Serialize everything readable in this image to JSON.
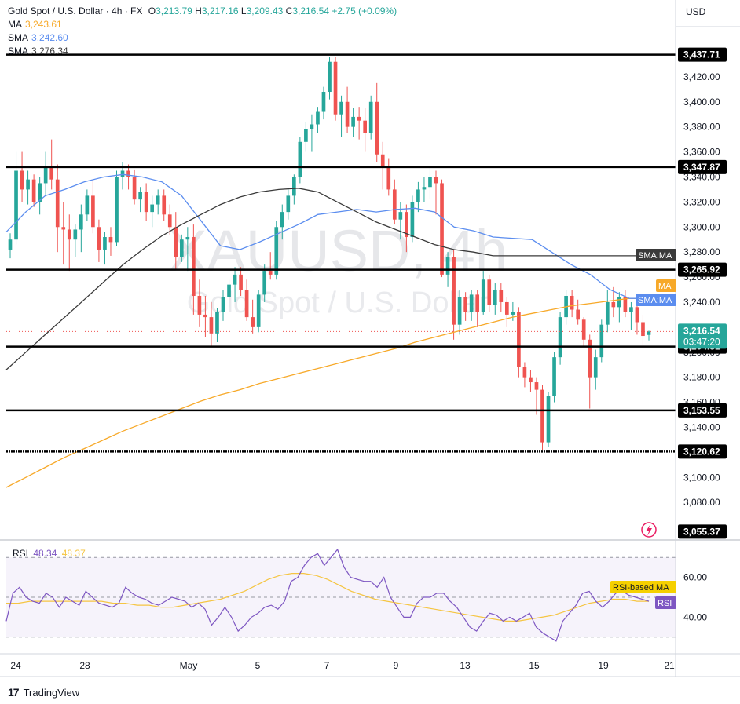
{
  "header": {
    "symbol": "Gold Spot / U.S. Dollar · 4h · FX",
    "open_label": "O",
    "open": "3,213.79",
    "high_label": "H",
    "high": "3,217.16",
    "low_label": "L",
    "low": "3,209.43",
    "close_label": "C",
    "close": "3,216.54",
    "change": "+2.75 (+0.09%)",
    "ma_label": "MA",
    "ma_value": "3,243.61",
    "sma1_label": "SMA",
    "sma1_value": "3,242.60",
    "sma2_label": "SMA",
    "sma2_value": "3,276.34"
  },
  "currency": "USD",
  "watermark": {
    "symbol": "XAUUSD, 4h",
    "name": "Gold Spot / U.S. Dollar"
  },
  "rsi_legend": {
    "label": "RSI",
    "value": "48.34",
    "ma_value": "48.37"
  },
  "branding": {
    "logo_text": "TradingView"
  },
  "colors": {
    "up": "#26a69a",
    "down": "#ef5350",
    "ma": "#f7a929",
    "sma_fast": "#5b8def",
    "sma_slow": "#3a3a3a",
    "rsi": "#7e57c2",
    "rsi_ma": "#f5c542",
    "current_price": "#26a69a"
  },
  "chart_data": [
    {
      "type": "candlestick",
      "title": "Gold Spot / U.S. Dollar · 4h · FX",
      "ylim": [
        3050,
        3445
      ],
      "x_tick_labels": [
        "24",
        "28",
        "May",
        "5",
        "7",
        "9",
        "13",
        "15",
        "19",
        "21"
      ],
      "y_tick_labels": [
        "3,080.00",
        "3,100.00",
        "3,120.00",
        "3,140.00",
        "3,160.00",
        "3,180.00",
        "3,200.00",
        "3,220.00",
        "3,240.00",
        "3,260.00",
        "3,280.00",
        "3,300.00",
        "3,320.00",
        "3,340.00",
        "3,360.00",
        "3,380.00",
        "3,400.00",
        "3,420.00",
        "3,440.00"
      ],
      "y_ticks": [
        3080,
        3100,
        3120,
        3140,
        3160,
        3180,
        3200,
        3220,
        3240,
        3260,
        3280,
        3300,
        3320,
        3340,
        3360,
        3380,
        3400,
        3420,
        3440
      ],
      "horizontal_levels": [
        {
          "label": "3,437.71",
          "value": 3437.71
        },
        {
          "label": "3,347.87",
          "value": 3347.87
        },
        {
          "label": "3,265.92",
          "value": 3265.92
        },
        {
          "label": "3,204.51",
          "value": 3204.51
        },
        {
          "label": "3,153.55",
          "value": 3153.55
        },
        {
          "label": "3,120.62",
          "value": 3120.62
        }
      ],
      "bottom_label": {
        "label": "3,055.37",
        "value": 3055.37
      },
      "current_price": {
        "label": "3,216.54",
        "countdown": "03:47:20",
        "value": 3216.54
      },
      "series_labels": {
        "ma": "MA",
        "sma": "SMA:MA"
      },
      "ohlc": [
        [
          3282,
          3295,
          3275,
          3290
        ],
        [
          3290,
          3360,
          3286,
          3345
        ],
        [
          3345,
          3360,
          3320,
          3330
        ],
        [
          3330,
          3345,
          3318,
          3338
        ],
        [
          3338,
          3342,
          3316,
          3320
        ],
        [
          3320,
          3340,
          3310,
          3335
        ],
        [
          3335,
          3360,
          3325,
          3348
        ],
        [
          3348,
          3370,
          3330,
          3338
        ],
        [
          3338,
          3350,
          3280,
          3300
        ],
        [
          3300,
          3320,
          3270,
          3298
        ],
        [
          3298,
          3310,
          3265,
          3290
        ],
        [
          3290,
          3302,
          3276,
          3298
        ],
        [
          3298,
          3318,
          3280,
          3310
        ],
        [
          3310,
          3330,
          3305,
          3325
        ],
        [
          3325,
          3338,
          3295,
          3300
        ],
        [
          3300,
          3306,
          3272,
          3282
        ],
        [
          3282,
          3296,
          3270,
          3292
        ],
        [
          3292,
          3300,
          3277,
          3288
        ],
        [
          3288,
          3345,
          3285,
          3340
        ],
        [
          3340,
          3352,
          3330,
          3345
        ],
        [
          3345,
          3350,
          3330,
          3340
        ],
        [
          3340,
          3346,
          3318,
          3322
        ],
        [
          3322,
          3332,
          3312,
          3328
        ],
        [
          3328,
          3335,
          3305,
          3312
        ],
        [
          3312,
          3325,
          3300,
          3318
        ],
        [
          3318,
          3330,
          3310,
          3325
        ],
        [
          3325,
          3330,
          3305,
          3310
        ],
        [
          3310,
          3318,
          3294,
          3300
        ],
        [
          3300,
          3312,
          3266,
          3276
        ],
        [
          3276,
          3294,
          3272,
          3290
        ],
        [
          3290,
          3300,
          3265,
          3292
        ],
        [
          3292,
          3302,
          3230,
          3245
        ],
        [
          3245,
          3258,
          3220,
          3230
        ],
        [
          3230,
          3245,
          3212,
          3228
        ],
        [
          3228,
          3240,
          3205,
          3215
        ],
        [
          3215,
          3235,
          3208,
          3232
        ],
        [
          3232,
          3250,
          3225,
          3244
        ],
        [
          3244,
          3258,
          3236,
          3254
        ],
        [
          3254,
          3268,
          3240,
          3262
        ],
        [
          3262,
          3268,
          3245,
          3250
        ],
        [
          3250,
          3258,
          3225,
          3228
        ],
        [
          3228,
          3242,
          3215,
          3220
        ],
        [
          3220,
          3250,
          3216,
          3246
        ],
        [
          3246,
          3270,
          3240,
          3265
        ],
        [
          3265,
          3280,
          3258,
          3262
        ],
        [
          3262,
          3305,
          3258,
          3300
        ],
        [
          3300,
          3318,
          3290,
          3312
        ],
        [
          3312,
          3330,
          3306,
          3325
        ],
        [
          3325,
          3342,
          3318,
          3340
        ],
        [
          3340,
          3372,
          3335,
          3368
        ],
        [
          3368,
          3384,
          3360,
          3378
        ],
        [
          3378,
          3390,
          3360,
          3382
        ],
        [
          3382,
          3396,
          3375,
          3392
        ],
        [
          3392,
          3412,
          3386,
          3408
        ],
        [
          3408,
          3436,
          3402,
          3432
        ],
        [
          3432,
          3436,
          3385,
          3390
        ],
        [
          3390,
          3405,
          3372,
          3400
        ],
        [
          3400,
          3412,
          3375,
          3380
        ],
        [
          3380,
          3395,
          3372,
          3388
        ],
        [
          3388,
          3396,
          3370,
          3385
        ],
        [
          3385,
          3395,
          3360,
          3375
        ],
        [
          3375,
          3405,
          3370,
          3400
        ],
        [
          3400,
          3415,
          3352,
          3358
        ],
        [
          3358,
          3368,
          3330,
          3348
        ],
        [
          3348,
          3355,
          3325,
          3330
        ],
        [
          3330,
          3338,
          3302,
          3306
        ],
        [
          3306,
          3320,
          3290,
          3312
        ],
        [
          3312,
          3318,
          3280,
          3292
        ],
        [
          3292,
          3325,
          3288,
          3320
        ],
        [
          3320,
          3336,
          3312,
          3330
        ],
        [
          3330,
          3340,
          3320,
          3332
        ],
        [
          3332,
          3348,
          3322,
          3340
        ],
        [
          3340,
          3345,
          3310,
          3335
        ],
        [
          3335,
          3338,
          3260,
          3262
        ],
        [
          3262,
          3280,
          3252,
          3276
        ],
        [
          3276,
          3282,
          3210,
          3222
        ],
        [
          3222,
          3250,
          3214,
          3244
        ],
        [
          3244,
          3248,
          3225,
          3232
        ],
        [
          3232,
          3250,
          3225,
          3246
        ],
        [
          3246,
          3250,
          3220,
          3232
        ],
        [
          3232,
          3265,
          3230,
          3258
        ],
        [
          3258,
          3262,
          3232,
          3238
        ],
        [
          3238,
          3255,
          3230,
          3250
        ],
        [
          3250,
          3255,
          3232,
          3240
        ],
        [
          3240,
          3244,
          3220,
          3230
        ],
        [
          3230,
          3240,
          3225,
          3232
        ],
        [
          3232,
          3236,
          3180,
          3188
        ],
        [
          3188,
          3192,
          3172,
          3180
        ],
        [
          3180,
          3186,
          3168,
          3176
        ],
        [
          3176,
          3180,
          3150,
          3170
        ],
        [
          3170,
          3174,
          3122,
          3128
        ],
        [
          3128,
          3168,
          3124,
          3165
        ],
        [
          3165,
          3200,
          3160,
          3196
        ],
        [
          3196,
          3232,
          3190,
          3228
        ],
        [
          3228,
          3250,
          3222,
          3245
        ],
        [
          3245,
          3250,
          3228,
          3234
        ],
        [
          3234,
          3242,
          3222,
          3226
        ],
        [
          3226,
          3228,
          3205,
          3210
        ],
        [
          3210,
          3214,
          3155,
          3180
        ],
        [
          3180,
          3202,
          3170,
          3196
        ],
        [
          3196,
          3226,
          3192,
          3222
        ],
        [
          3222,
          3250,
          3216,
          3240
        ],
        [
          3240,
          3252,
          3228,
          3236
        ],
        [
          3236,
          3248,
          3224,
          3244
        ],
        [
          3244,
          3250,
          3228,
          3232
        ],
        [
          3232,
          3240,
          3218,
          3236
        ],
        [
          3236,
          3240,
          3214,
          3224
        ],
        [
          3224,
          3230,
          3206,
          3213
        ],
        [
          3213.79,
          3217.16,
          3209.43,
          3216.54
        ]
      ],
      "ma": [
        3092,
        3100,
        3108,
        3116,
        3123,
        3130,
        3137,
        3143,
        3149,
        3155,
        3161,
        3166,
        3170,
        3175,
        3179,
        3183,
        3187,
        3191,
        3195,
        3199,
        3203,
        3208,
        3212,
        3216,
        3220,
        3224,
        3228,
        3231,
        3234,
        3237,
        3239,
        3241,
        3243,
        3243
      ],
      "sma_fast": [
        3296,
        3312,
        3325,
        3330,
        3336,
        3340,
        3342,
        3340,
        3336,
        3325,
        3305,
        3285,
        3282,
        3288,
        3295,
        3302,
        3310,
        3312,
        3314,
        3312,
        3314,
        3315,
        3312,
        3300,
        3297,
        3292,
        3291,
        3290,
        3280,
        3270,
        3262,
        3250,
        3243,
        3243
      ],
      "sma_slow": [
        3186,
        3200,
        3214,
        3228,
        3242,
        3256,
        3270,
        3282,
        3293,
        3302,
        3310,
        3318,
        3324,
        3328,
        3330,
        3331,
        3328,
        3320,
        3312,
        3304,
        3298,
        3292,
        3286,
        3282,
        3280,
        3277,
        3277,
        3277,
        3277,
        3277,
        3277,
        3277,
        3277,
        3277
      ]
    },
    {
      "type": "line",
      "title": "RSI",
      "ylim": [
        22,
        78
      ],
      "y_tick_labels": [
        "40.00",
        "60.00"
      ],
      "y_ticks": [
        40,
        60
      ],
      "bands": [
        70,
        50,
        30
      ],
      "series_labels": {
        "rsi": "RSI",
        "rsi_ma": "RSI-based MA"
      },
      "rsi": [
        38,
        52,
        55,
        50,
        48,
        47,
        52,
        50,
        45,
        50,
        48,
        46,
        53,
        50,
        47,
        46,
        45,
        47,
        55,
        52,
        50,
        49,
        47,
        46,
        48,
        50,
        49,
        48,
        45,
        47,
        44,
        36,
        40,
        45,
        40,
        33,
        36,
        40,
        42,
        45,
        46,
        44,
        48,
        58,
        60,
        66,
        70,
        72,
        66,
        70,
        74,
        65,
        60,
        59,
        58,
        58,
        55,
        60,
        50,
        45,
        40,
        40,
        47,
        50,
        50,
        52,
        52,
        48,
        45,
        40,
        35,
        33,
        38,
        42,
        41,
        38,
        40,
        38,
        40,
        42,
        35,
        32,
        30,
        28,
        38,
        42,
        46,
        52,
        53,
        48,
        45,
        48,
        52,
        53,
        51,
        50,
        49,
        48
      ],
      "rsi_ma": [
        47,
        47,
        48,
        48,
        48,
        48,
        48,
        48,
        48,
        47,
        47,
        46,
        46,
        45,
        45,
        46,
        47,
        48,
        49,
        51,
        53,
        56,
        59,
        61,
        62,
        62,
        61,
        59,
        56,
        53,
        51,
        49,
        48,
        47,
        46,
        45,
        44,
        43,
        42,
        41,
        40,
        39,
        38,
        38,
        39,
        40,
        41,
        43,
        45,
        47,
        48,
        49,
        49,
        48,
        48
      ]
    }
  ]
}
